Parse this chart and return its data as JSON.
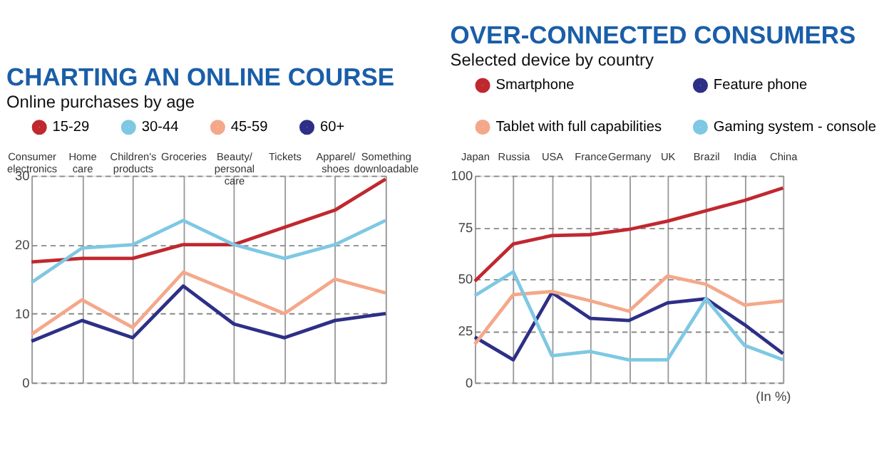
{
  "chart_data": [
    {
      "type": "line",
      "title": "CHARTING AN ONLINE COURSE",
      "subtitle": "Online purchases by age",
      "categories": [
        "Consumer electronics",
        "Home care",
        "Children's products",
        "Groceries",
        "Beauty/ personal care",
        "Tickets",
        "Apparel/ shoes",
        "Something downloadable"
      ],
      "series": [
        {
          "name": "15-29",
          "color": "#c0282f",
          "values": [
            17.5,
            18,
            18,
            20,
            20,
            22.5,
            25,
            29.5
          ]
        },
        {
          "name": "30-44",
          "color": "#7ec8e3",
          "values": [
            14.5,
            19.5,
            20,
            23.5,
            20,
            18,
            20,
            23.5
          ]
        },
        {
          "name": "45-59",
          "color": "#f4a88a",
          "values": [
            7,
            12,
            8,
            16,
            13,
            10,
            15,
            13
          ]
        },
        {
          "name": "60+",
          "color": "#2e2f86",
          "values": [
            6,
            9,
            6.5,
            14,
            8.5,
            6.5,
            9,
            10
          ]
        }
      ],
      "ylim": [
        0,
        30
      ],
      "yticks": [
        0,
        10,
        20,
        30
      ],
      "grid": true,
      "legend": "top",
      "marker": "none",
      "line_style": "solid"
    },
    {
      "type": "line",
      "title": "OVER-CONNECTED CONSUMERS",
      "subtitle": "Selected device by country",
      "categories": [
        "Japan",
        "Russia",
        "USA",
        "France",
        "Germany",
        "UK",
        "Brazil",
        "India",
        "China"
      ],
      "series": [
        {
          "name": "Smartphone",
          "color": "#c0282f",
          "values": [
            49,
            67,
            71,
            71.5,
            74,
            78,
            83,
            88,
            94
          ]
        },
        {
          "name": "Feature phone",
          "color": "#2e2f86",
          "values": [
            22,
            11,
            43.5,
            31,
            30,
            38.5,
            40.5,
            28,
            14
          ]
        },
        {
          "name": "Tablet with full capabilities",
          "color": "#f4a88a",
          "values": [
            18.5,
            42.5,
            44,
            39.5,
            34.5,
            51.5,
            47.5,
            37.5,
            39.5
          ]
        },
        {
          "name": "Gaming system - console",
          "color": "#7ec8e3",
          "values": [
            42,
            53.5,
            13,
            15,
            11,
            11,
            40.5,
            18,
            11
          ]
        }
      ],
      "ylim": [
        0,
        100
      ],
      "yticks": [
        0,
        25,
        50,
        75,
        100
      ],
      "grid": true,
      "legend": "top",
      "marker": "none",
      "line_style": "solid",
      "annotations": [
        "(In %)"
      ]
    }
  ]
}
